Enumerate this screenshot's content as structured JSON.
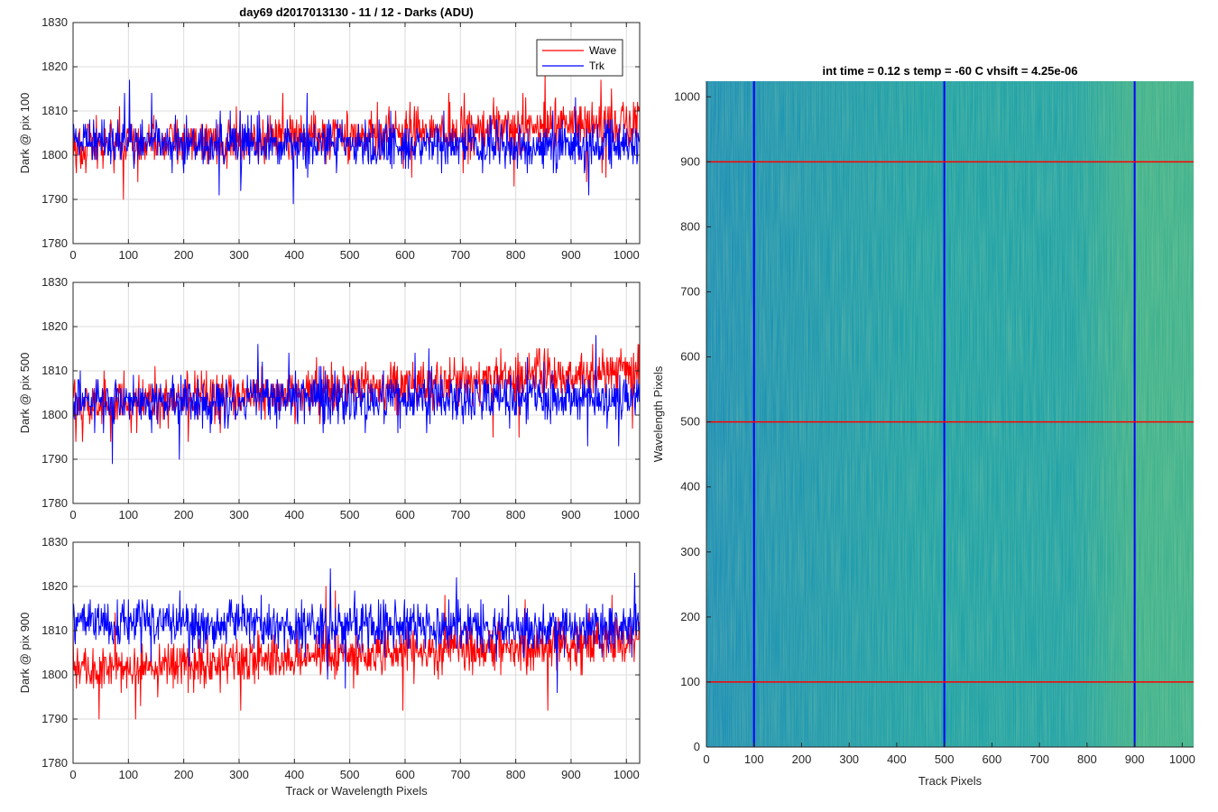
{
  "figure": {
    "title": "day69 d2017013130 - 11 / 12 - Darks (ADU)"
  },
  "chart_data": [
    {
      "type": "line",
      "ylabel": "Dark @ pix 100",
      "xlabel": "",
      "xlim": [
        0,
        1024
      ],
      "ylim": [
        1780,
        1830
      ],
      "xticks": [
        "0",
        "100",
        "200",
        "300",
        "400",
        "500",
        "600",
        "700",
        "800",
        "900",
        "1000"
      ],
      "yticks": [
        "1780",
        "1790",
        "1800",
        "1810",
        "1820",
        "1830"
      ],
      "grid": true,
      "legend": {
        "placement": "top-right",
        "entries": [
          "Wave",
          "Trk"
        ]
      },
      "series": [
        {
          "name": "Wave",
          "color": "#ff0000",
          "mean_start": 1802,
          "mean_end": 1807,
          "noise": 5
        },
        {
          "name": "Trk",
          "color": "#0000ff",
          "mean_start": 1803,
          "mean_end": 1802,
          "noise": 5
        }
      ]
    },
    {
      "type": "line",
      "ylabel": "Dark @ pix 500",
      "xlabel": "",
      "xlim": [
        0,
        1024
      ],
      "ylim": [
        1780,
        1830
      ],
      "xticks": [
        "0",
        "100",
        "200",
        "300",
        "400",
        "500",
        "600",
        "700",
        "800",
        "900",
        "1000"
      ],
      "yticks": [
        "1780",
        "1790",
        "1800",
        "1810",
        "1820",
        "1830"
      ],
      "grid": true,
      "series": [
        {
          "name": "Wave",
          "color": "#ff0000",
          "mean_start": 1802,
          "mean_end": 1810,
          "noise": 5
        },
        {
          "name": "Trk",
          "color": "#0000ff",
          "mean_start": 1803,
          "mean_end": 1804,
          "noise": 5
        }
      ]
    },
    {
      "type": "line",
      "ylabel": "Dark @ pix 900",
      "xlabel": "Track or Wavelength Pixels",
      "xlim": [
        0,
        1024
      ],
      "ylim": [
        1780,
        1830
      ],
      "xticks": [
        "0",
        "100",
        "200",
        "300",
        "400",
        "500",
        "600",
        "700",
        "800",
        "900",
        "1000"
      ],
      "yticks": [
        "1780",
        "1790",
        "1800",
        "1810",
        "1820",
        "1830"
      ],
      "grid": true,
      "series": [
        {
          "name": "Wave",
          "color": "#ff0000",
          "mean_start": 1801,
          "mean_end": 1808,
          "noise": 5
        },
        {
          "name": "Trk",
          "color": "#0000ff",
          "mean_start": 1812,
          "mean_end": 1810,
          "noise": 5
        }
      ]
    },
    {
      "type": "heatmap",
      "title": "int time = 0.12 s    temp = -60 C    vhsift = 4.25e-06",
      "xlabel": "Track Pixels",
      "ylabel": "Wavelength Pixels",
      "xlim": [
        0,
        1024
      ],
      "ylim": [
        0,
        1024
      ],
      "xticks": [
        "0",
        "100",
        "200",
        "300",
        "400",
        "500",
        "600",
        "700",
        "800",
        "900",
        "1000"
      ],
      "yticks": [
        "0",
        "100",
        "200",
        "300",
        "400",
        "500",
        "600",
        "700",
        "800",
        "900",
        "1000"
      ],
      "vertical_lines": {
        "color": "#0000ff",
        "x": [
          100,
          500,
          900
        ]
      },
      "horizontal_lines": {
        "color": "#ff0000",
        "y": [
          100,
          500,
          900
        ]
      },
      "colormap": [
        "#1d8fb8",
        "#20a2a8",
        "#3fb28f",
        "#8cc46c"
      ]
    }
  ]
}
